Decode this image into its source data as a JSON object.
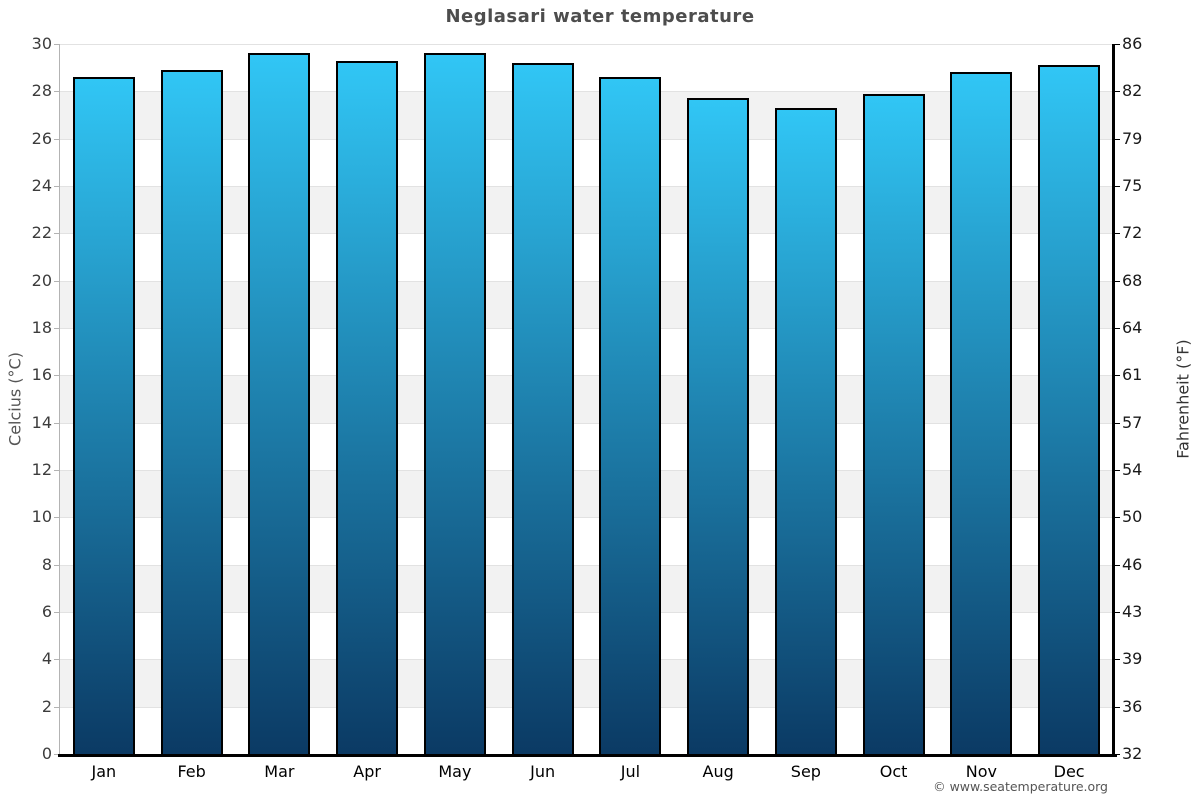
{
  "page": {
    "footer": "© www.seatemperature.org"
  },
  "chart_data": {
    "type": "bar",
    "title": "Neglasari water temperature",
    "xlabel": "",
    "ylabel_left": "Celcius (°C)",
    "ylabel_right": "Fahrenheit (°F)",
    "categories": [
      "Jan",
      "Feb",
      "Mar",
      "Apr",
      "May",
      "Jun",
      "Jul",
      "Aug",
      "Sep",
      "Oct",
      "Nov",
      "Dec"
    ],
    "values": [
      28.6,
      28.9,
      29.6,
      29.3,
      29.6,
      29.2,
      28.6,
      27.7,
      27.3,
      27.9,
      28.8,
      29.1
    ],
    "unit": "°C",
    "ylim": [
      0,
      30
    ],
    "yticks_celsius": [
      0,
      2,
      4,
      6,
      8,
      10,
      12,
      14,
      16,
      18,
      20,
      22,
      24,
      26,
      28,
      30
    ],
    "yticks_fahrenheit": [
      32,
      36,
      39,
      43,
      46,
      50,
      54,
      57,
      61,
      64,
      68,
      72,
      75,
      79,
      82,
      86
    ],
    "grid": "alternating horizontal bands every 2°C",
    "legend": "none",
    "colors": {
      "bar_gradient_top": "#31c6f5",
      "bar_gradient_bottom": "#0b3a64",
      "bar_border": "#000000",
      "band_gray": "#f2f2f2",
      "band_white": "#ffffff",
      "gridline": "#e2e2e2",
      "axis_left": "#b3b3b3",
      "axis_black": "#000000",
      "title_text": "#4d4d4d",
      "tick_text_left": "#3c3c3c",
      "tick_text_right": "#1a1a1a",
      "axis_title_text": "#555555",
      "footer_text": "#555555"
    }
  }
}
